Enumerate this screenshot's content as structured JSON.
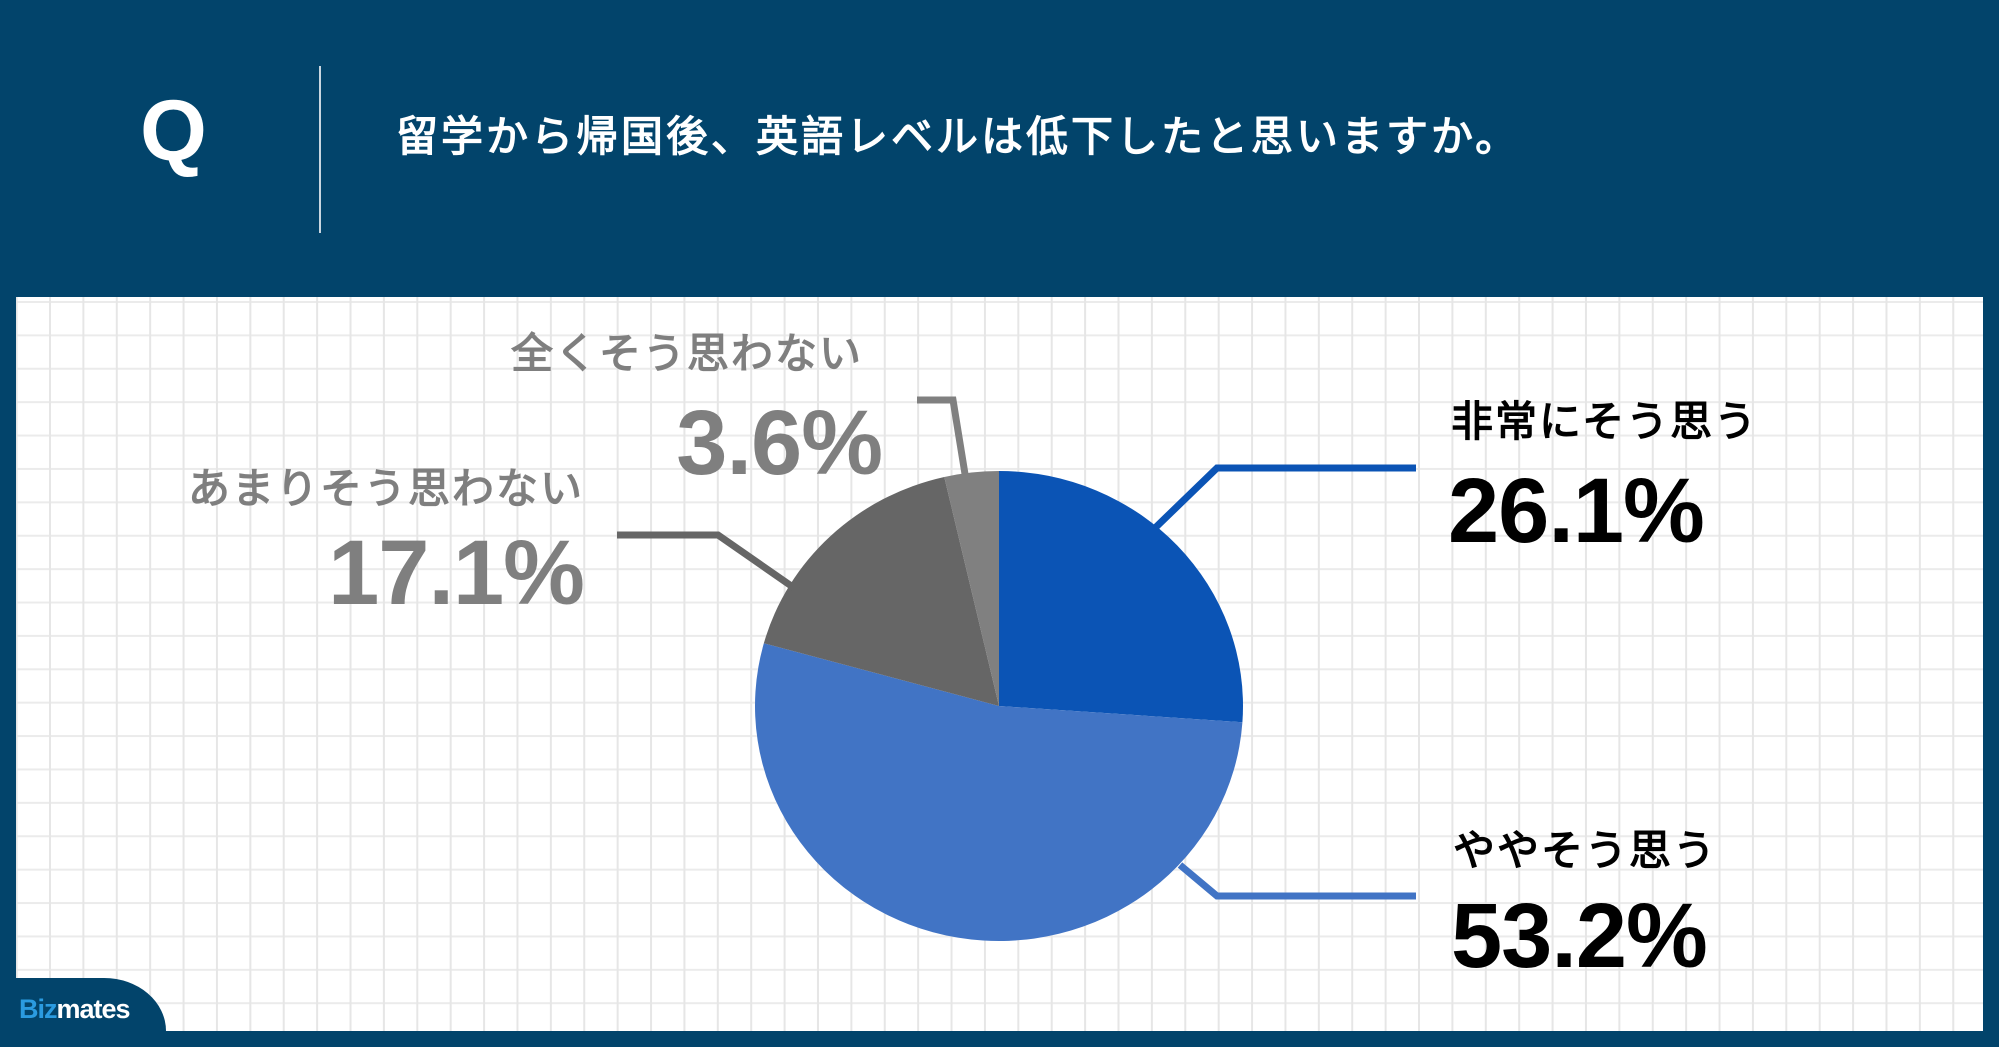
{
  "header": {
    "q_label": "Q",
    "question": "留学から帰国後、英語レベルは低下したと思いますか。",
    "background_color": "#02446b"
  },
  "logo": {
    "part1": "Biz",
    "part2": "mates"
  },
  "chart_data": {
    "type": "pie",
    "title": "留学から帰国後、英語レベルは低下したと思いますか。",
    "start_angle_deg": 0,
    "direction": "clockwise",
    "categories": [
      "非常にそう思う",
      "ややそう思う",
      "あまりそう思わない",
      "全くそう思わない"
    ],
    "values": [
      26.1,
      53.2,
      17.1,
      3.6
    ],
    "value_labels": [
      "26.1%",
      "53.2%",
      "17.1%",
      "3.6%"
    ],
    "colors": [
      "#0b54b5",
      "#4174c5",
      "#666666",
      "#808080"
    ],
    "legend": "none (data labels with leader lines)",
    "grid": "background grid paper"
  },
  "labels": [
    {
      "category": "非常にそう思う",
      "value": "26.1%"
    },
    {
      "category": "ややそう思う",
      "value": "53.2%"
    },
    {
      "category": "あまりそう思わない",
      "value": "17.1%"
    },
    {
      "category": "全くそう思わない",
      "value": "3.6%"
    }
  ]
}
